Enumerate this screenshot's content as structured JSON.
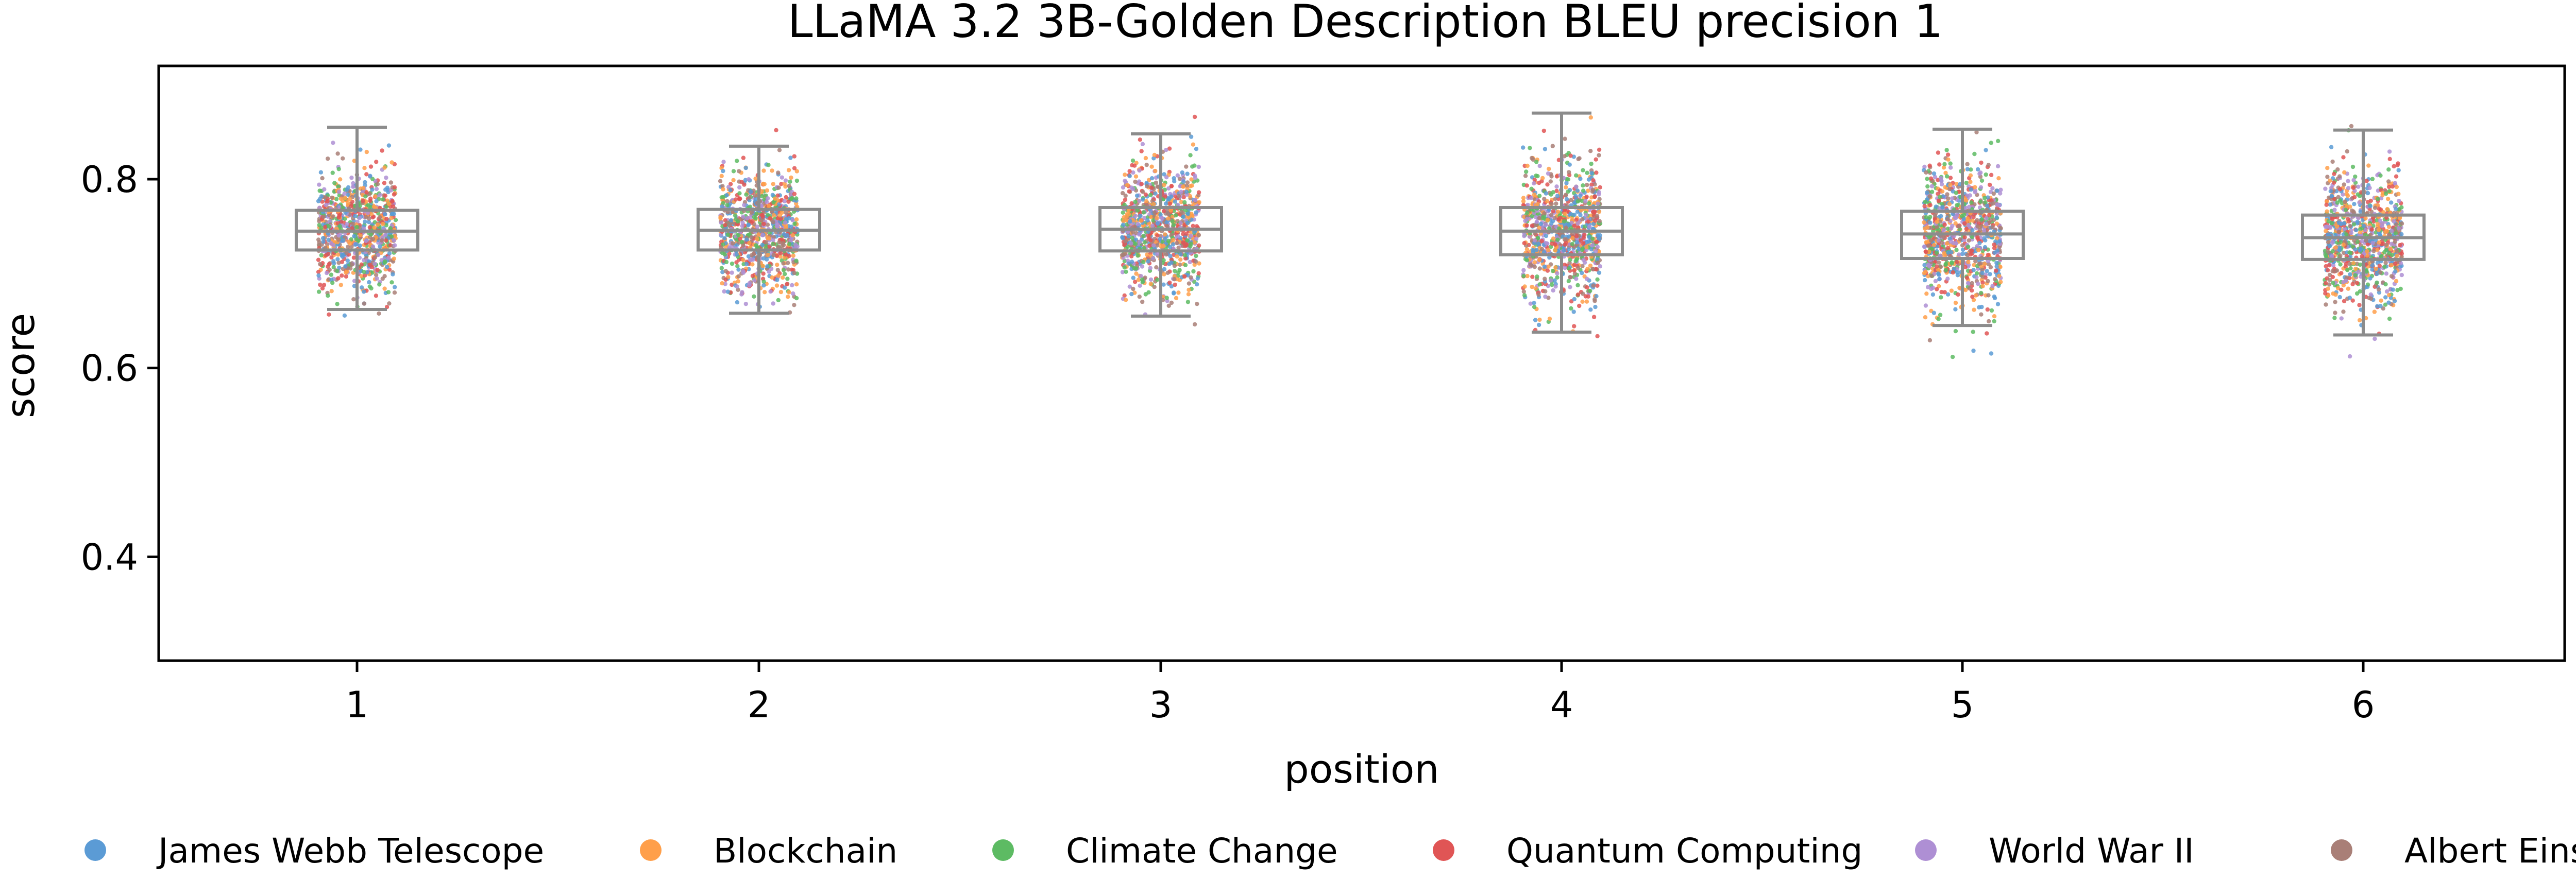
{
  "chart_data": {
    "type": "box+strip",
    "title": "LLaMA 3.2 3B-Golden Description BLEU precision 1",
    "xlabel": "position",
    "ylabel": "score",
    "categories": [
      "1",
      "2",
      "3",
      "4",
      "5",
      "6"
    ],
    "ylim": [
      0.29,
      0.92
    ],
    "yticks": [
      0.4,
      0.6,
      0.8
    ],
    "ytick_labels": [
      "0.4",
      "0.6",
      "0.8"
    ],
    "grid": false,
    "legend_placement": "bottom",
    "series": [
      {
        "name": "James Webb Telescope",
        "color": "#5b9bd5"
      },
      {
        "name": "Blockchain",
        "color": "#ff9f4a"
      },
      {
        "name": "Climate Change",
        "color": "#5dbb63"
      },
      {
        "name": "Quantum Computing",
        "color": "#e05555"
      },
      {
        "name": "World War II",
        "color": "#ae8fd4"
      },
      {
        "name": "Albert Einstein",
        "color": "#a97f77"
      }
    ],
    "boxes": [
      {
        "position": "1",
        "whisker_low": 0.662,
        "q1": 0.725,
        "median": 0.745,
        "q3": 0.767,
        "whisker_high": 0.855,
        "min": 0.635,
        "max": 0.875
      },
      {
        "position": "2",
        "whisker_low": 0.658,
        "q1": 0.725,
        "median": 0.746,
        "q3": 0.768,
        "whisker_high": 0.835,
        "min": 0.62,
        "max": 0.852
      },
      {
        "position": "3",
        "whisker_low": 0.655,
        "q1": 0.724,
        "median": 0.747,
        "q3": 0.77,
        "whisker_high": 0.848,
        "min": 0.632,
        "max": 0.866
      },
      {
        "position": "4",
        "whisker_low": 0.638,
        "q1": 0.72,
        "median": 0.745,
        "q3": 0.77,
        "whisker_high": 0.87,
        "min": 0.575,
        "max": 0.895
      },
      {
        "position": "5",
        "whisker_low": 0.645,
        "q1": 0.716,
        "median": 0.742,
        "q3": 0.766,
        "whisker_high": 0.853,
        "min": 0.58,
        "max": 0.875
      },
      {
        "position": "6",
        "whisker_low": 0.635,
        "q1": 0.715,
        "median": 0.738,
        "q3": 0.762,
        "whisker_high": 0.852,
        "min": 0.575,
        "max": 0.878
      }
    ],
    "colors": {
      "box": "#8c8c8c",
      "axis": "#000000"
    }
  }
}
